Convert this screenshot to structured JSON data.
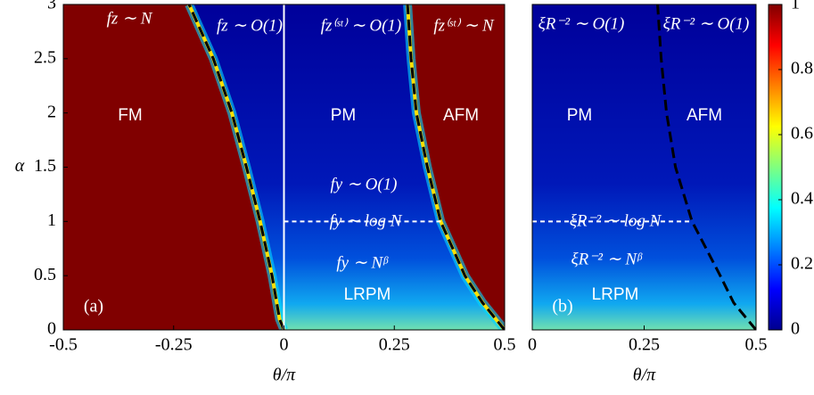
{
  "chart_data": [
    {
      "type": "heatmap",
      "panel_label": "(a)",
      "xlabel": "θ/π",
      "ylabel": "α",
      "xlim": [
        -0.5,
        0.5
      ],
      "xticks": [
        -0.5,
        -0.25,
        0,
        0.25,
        0.5
      ],
      "ylim": [
        0,
        3
      ],
      "yticks": [
        0,
        0.5,
        1,
        1.5,
        2,
        2.5,
        3
      ],
      "annotations": [
        "fz ∼ N",
        "fz ∼ O(1)",
        "fz⁽ˢᵗ⁾ ∼ O(1)",
        "fz⁽ˢᵗ⁾ ∼ N",
        "FM",
        "PM",
        "AFM",
        "fy ∼ O(1)",
        "fy ∼ log N",
        "fy ∼ Nᵝ",
        "LRPM"
      ],
      "series": [
        {
          "color": "#000000",
          "dash": true,
          "x": [
            0,
            -0.01,
            -0.027,
            -0.054,
            -0.085,
            -0.118,
            -0.16,
            -0.215
          ],
          "values": [
            0,
            0.1,
            0.5,
            1,
            1.5,
            2,
            2.5,
            3
          ]
        },
        {
          "color": "#000000",
          "dash": true,
          "x": [
            0.5,
            0.45,
            0.41,
            0.355,
            0.325,
            0.3,
            0.288,
            0.28
          ],
          "values": [
            0,
            0.25,
            0.5,
            1,
            1.5,
            2,
            2.5,
            3
          ]
        },
        {
          "color": "#ffffff",
          "dash": true,
          "x": [
            0,
            0.355
          ],
          "values": [
            1,
            1
          ]
        },
        {
          "color": "#ffffff",
          "dash": false,
          "x": [
            0,
            0
          ],
          "values": [
            0,
            3
          ]
        }
      ]
    },
    {
      "type": "heatmap",
      "panel_label": "(b)",
      "xlabel": "θ/π",
      "xlim": [
        0,
        0.5
      ],
      "xticks": [
        0,
        0.25,
        0.5
      ],
      "ylim": [
        0,
        3
      ],
      "annotations": [
        "ξR⁻² ∼ O(1)",
        "ξR⁻² ∼ O(1)",
        "PM",
        "AFM",
        "ξR⁻² ∼ log N",
        "ξR⁻² ∼ Nᵝ",
        "LRPM"
      ],
      "series": [
        {
          "color": "#000000",
          "dash": true,
          "x": [
            0.5,
            0.45,
            0.42,
            0.357,
            0.32,
            0.3,
            0.288,
            0.28
          ],
          "values": [
            0,
            0.25,
            0.5,
            1,
            1.5,
            2,
            2.5,
            3
          ]
        },
        {
          "color": "#ffffff",
          "dash": true,
          "x": [
            0,
            0.357
          ],
          "values": [
            1,
            1
          ]
        }
      ]
    },
    {
      "type": "colorbar",
      "colormap": "jet",
      "ylim": [
        0,
        1
      ],
      "yticks": [
        0,
        0.2,
        0.4,
        0.6,
        0.8,
        1
      ]
    }
  ]
}
